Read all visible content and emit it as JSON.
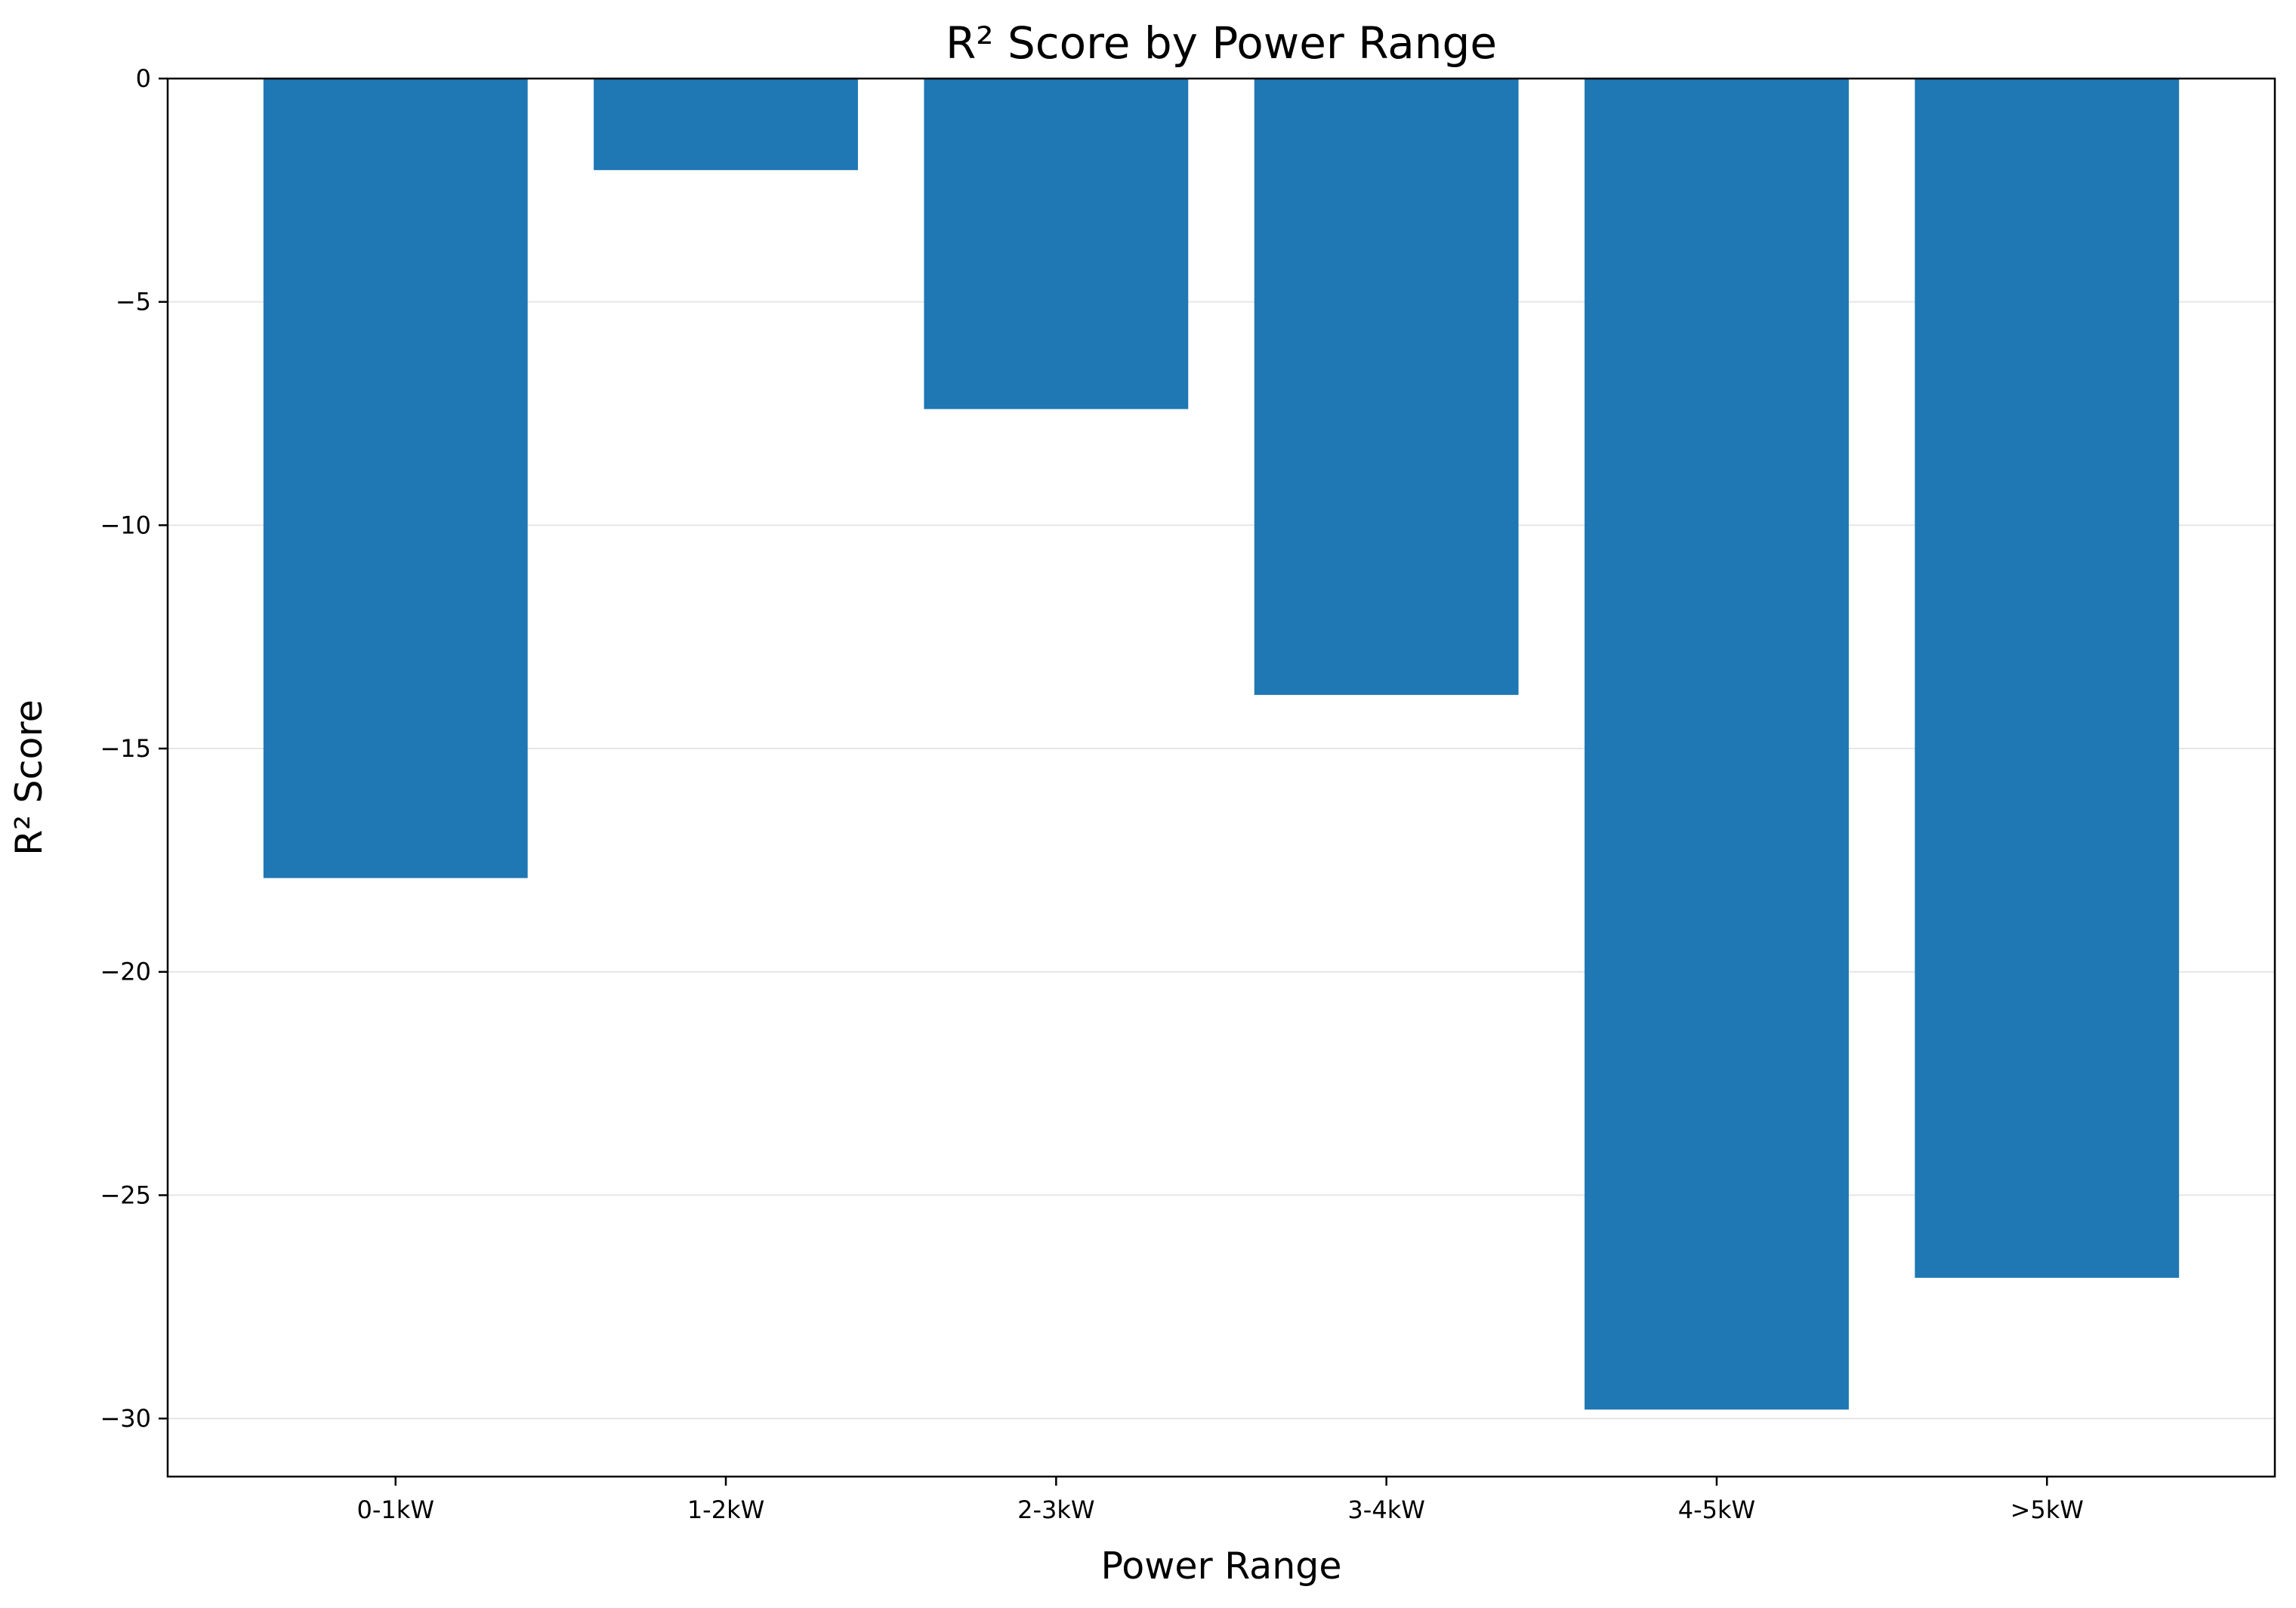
{
  "chart_data": {
    "type": "bar",
    "title": "R² Score by Power Range",
    "xlabel": "Power Range",
    "ylabel": "R² Score",
    "categories": [
      "0-1kW",
      "1-2kW",
      "2-3kW",
      "3-4kW",
      "4-5kW",
      ">5kW"
    ],
    "values": [
      -17.9,
      -2.05,
      -7.4,
      -13.8,
      -29.8,
      -26.85
    ],
    "ylim": [
      -31.3,
      0
    ],
    "yticks": [
      0,
      -5,
      -10,
      -15,
      -20,
      -25,
      -30
    ],
    "ytick_labels": [
      "0",
      "−5",
      "−10",
      "−15",
      "−20",
      "−25",
      "−30"
    ],
    "grid": "horizontal",
    "bar_color": "#1f77b4",
    "grid_color": "#e6e6e6"
  }
}
